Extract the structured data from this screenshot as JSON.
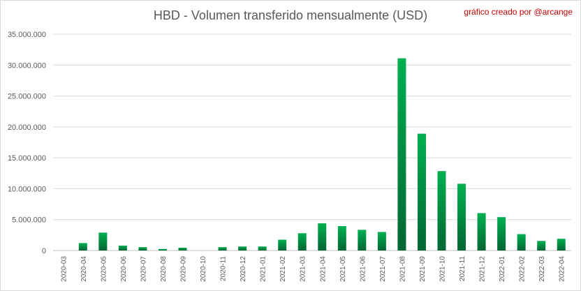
{
  "chart_data": {
    "type": "bar",
    "title": "HBD - Volumen transferido mensualmente (USD)",
    "annotation": "gráfico creado por @arcange",
    "xlabel": "",
    "ylabel": "",
    "ylim": [
      0,
      35000000
    ],
    "y_ticks": [
      0,
      5000000,
      10000000,
      15000000,
      20000000,
      25000000,
      30000000,
      35000000
    ],
    "y_tick_labels": [
      "0",
      "5.000.000",
      "10.000.000",
      "15.000.000",
      "20.000.000",
      "25.000.000",
      "30.000.000",
      "35.000.000"
    ],
    "grid": true,
    "legend": "none",
    "bar_color_top": "#00b050",
    "bar_color_bottom": "#006633",
    "categories": [
      "2020-03",
      "2020-04",
      "2020-05",
      "2020-06",
      "2020-07",
      "2020-08",
      "2020-09",
      "2020-10",
      "2020-11",
      "2020-12",
      "2021-01",
      "2021-02",
      "2021-03",
      "2021-04",
      "2021-05",
      "2021-06",
      "2021-07",
      "2021-08",
      "2021-09",
      "2021-10",
      "2021-11",
      "2021-12",
      "2022-01",
      "2022-02",
      "2022-03",
      "2022-04"
    ],
    "values": [
      0,
      1200000,
      2900000,
      800000,
      550000,
      250000,
      450000,
      0,
      550000,
      650000,
      650000,
      1750000,
      2800000,
      4400000,
      3950000,
      3350000,
      3000000,
      31100000,
      18900000,
      12850000,
      10800000,
      6050000,
      5400000,
      2650000,
      1550000,
      1900000
    ]
  }
}
